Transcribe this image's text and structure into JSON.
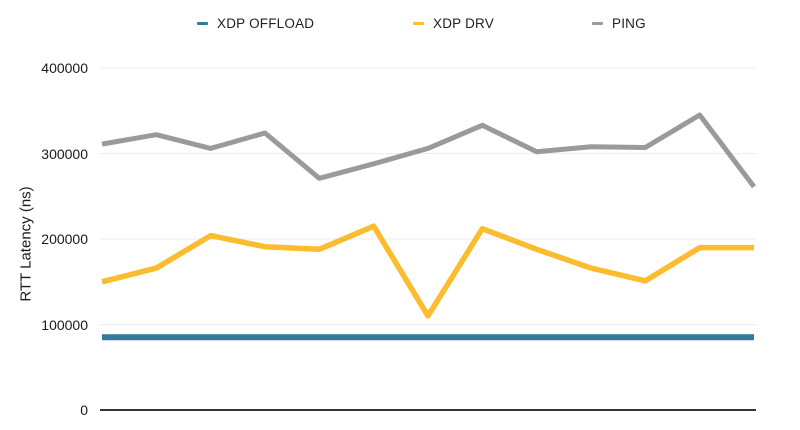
{
  "chart_data": {
    "type": "line",
    "title": "",
    "xlabel": "",
    "ylabel": "RTT Latency (ns)",
    "x": [
      1,
      2,
      3,
      4,
      5,
      6,
      7,
      8,
      9,
      10,
      11,
      12,
      13
    ],
    "series": [
      {
        "name": "XDP OFFLOAD",
        "color": "#36789c",
        "values": [
          85000,
          85000,
          85000,
          85000,
          85000,
          85000,
          85000,
          85000,
          85000,
          85000,
          85000,
          85000,
          85000
        ]
      },
      {
        "name": "XDP DRV",
        "color": "#fbbc2d",
        "values": [
          150000,
          166000,
          204000,
          191000,
          188000,
          215000,
          110000,
          212000,
          188000,
          166000,
          151000,
          190000,
          190000
        ]
      },
      {
        "name": "PING",
        "color": "#9a9a9a",
        "values": [
          311000,
          322000,
          306000,
          324000,
          271000,
          288000,
          306000,
          333000,
          302000,
          308000,
          307000,
          345000,
          261000
        ]
      }
    ],
    "yticks": [
      0,
      100000,
      200000,
      300000,
      400000
    ],
    "ytick_labels_top_to_bottom": [
      "400000",
      "300000",
      "200000",
      "100000",
      "0"
    ],
    "ylim": [
      0,
      400000
    ],
    "grid": true,
    "legend_position": "top",
    "colors": {
      "background": "#ffffff",
      "gridline": "#ececec",
      "axis_line": "#333333",
      "text": "#212121"
    }
  }
}
